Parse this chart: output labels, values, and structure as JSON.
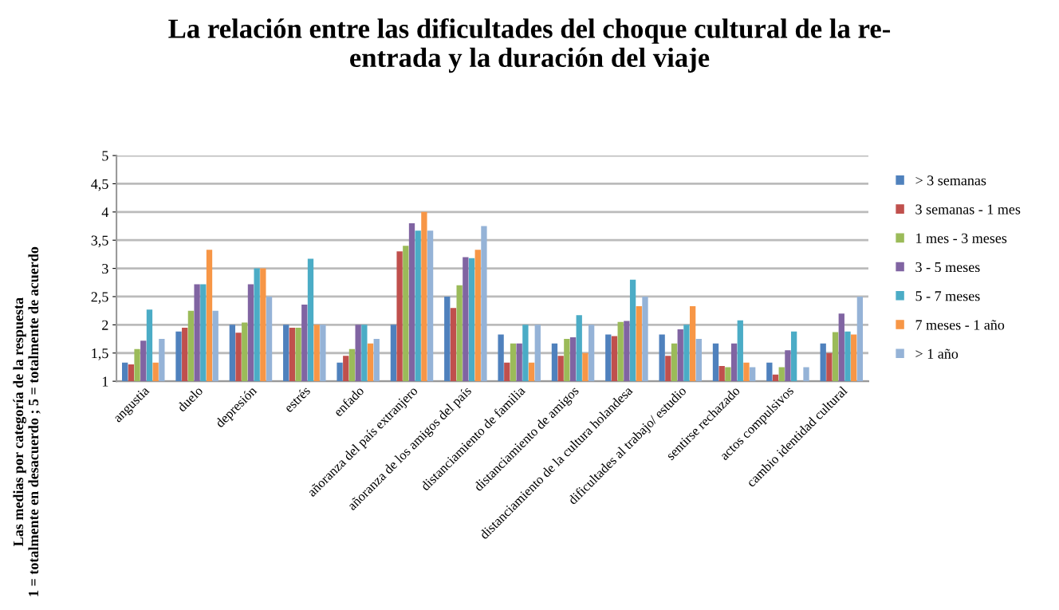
{
  "chart_data": {
    "type": "bar",
    "title": "La relación entre las dificultades del choque cultural de la re-\nentrada y la duración del viaje",
    "ylabel": "Las medias por categoría de la respuesta\n1 = totalmente en desacuerdo ; 5 = totalmente de acuerdo",
    "categories": [
      "angustia",
      "duelo",
      "depresión",
      "estrés",
      "enfado",
      "añoranza del país extranjero",
      "añoranza de los amigos del país",
      "distanciamiento de familia",
      "distanciamiento de amigos",
      "distanciamiento de la cultura holandesa",
      "dificultades al trabajo/ estudio",
      "sentirse rechazado",
      "actos compulsivos",
      "cambio identidad cultural"
    ],
    "series": [
      {
        "name": "> 3 semanas",
        "color": "#4f81bd",
        "values": [
          1.33,
          1.88,
          2.0,
          2.0,
          1.33,
          2.0,
          2.5,
          1.83,
          1.67,
          1.83,
          1.83,
          1.67,
          1.33,
          1.67
        ]
      },
      {
        "name": "3 semanas - 1 mes",
        "color": "#c0504d",
        "values": [
          1.3,
          1.95,
          1.86,
          1.95,
          1.45,
          3.3,
          2.3,
          1.33,
          1.45,
          1.8,
          1.45,
          1.27,
          1.12,
          1.5
        ]
      },
      {
        "name": "1 mes - 3 meses",
        "color": "#9bbb59",
        "values": [
          1.57,
          2.25,
          2.04,
          1.95,
          1.57,
          3.4,
          2.7,
          1.67,
          1.75,
          2.05,
          1.67,
          1.25,
          1.25,
          1.87
        ]
      },
      {
        "name": "3 - 5 meses",
        "color": "#8064a2",
        "values": [
          1.72,
          2.72,
          2.72,
          2.36,
          2.0,
          3.8,
          3.2,
          1.67,
          1.78,
          2.07,
          1.92,
          1.67,
          1.55,
          2.2
        ]
      },
      {
        "name": "5 - 7 meses",
        "color": "#4bacc6",
        "values": [
          2.27,
          2.72,
          3.0,
          3.17,
          2.0,
          3.67,
          3.18,
          2.0,
          2.17,
          2.8,
          2.0,
          2.08,
          1.88,
          1.88
        ]
      },
      {
        "name": "7 meses - 1 año",
        "color": "#f79646",
        "values": [
          1.33,
          3.33,
          3.0,
          2.0,
          1.67,
          4.0,
          3.33,
          1.33,
          1.5,
          2.33,
          2.33,
          1.33,
          1.0,
          1.83
        ]
      },
      {
        "name": "> 1 año",
        "color": "#95b3d7",
        "values": [
          1.75,
          2.25,
          2.5,
          2.0,
          1.75,
          3.67,
          3.75,
          2.0,
          2.0,
          2.5,
          1.75,
          1.25,
          1.25,
          2.5
        ]
      }
    ],
    "ylim": [
      1,
      5
    ],
    "yticks": [
      1,
      {
        "value": 1.5,
        "label": "1,5"
      },
      2,
      {
        "value": 2.5,
        "label": "2,5"
      },
      3,
      {
        "value": 3.5,
        "label": "3,5"
      },
      4,
      {
        "value": 4.5,
        "label": "4,5"
      },
      5
    ],
    "grid": "y",
    "legend": "right"
  }
}
